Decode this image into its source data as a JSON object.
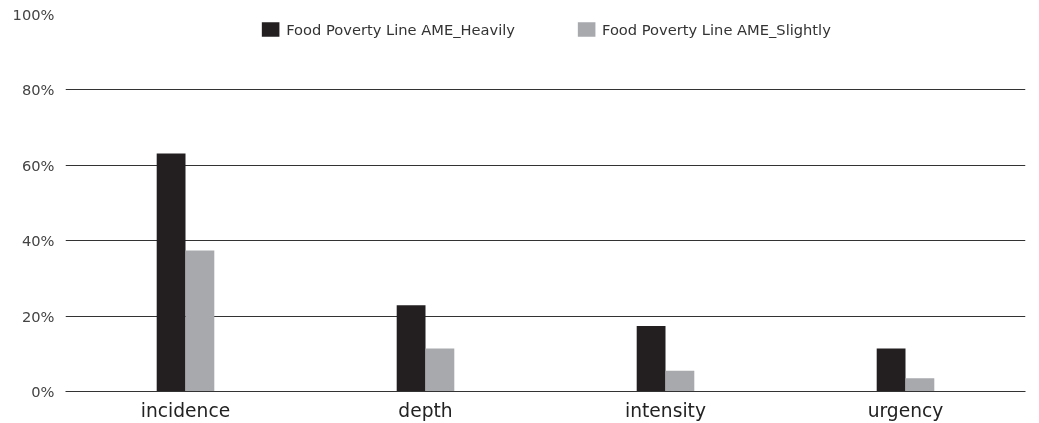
{
  "chart_data": {
    "type": "bar",
    "categories": [
      "incidence",
      "depth",
      "intensity",
      "urgency"
    ],
    "series": [
      {
        "name": "Food Poverty Line AME_Heavily",
        "color": "#231f20",
        "values": [
          63.1,
          22.9,
          17.4,
          11.4
        ]
      },
      {
        "name": "Food Poverty Line AME_Slightly",
        "color": "#a7a9ac",
        "values": [
          37.4,
          11.4,
          5.5,
          3.5
        ]
      }
    ],
    "ylim": [
      0,
      100
    ],
    "yticks": [
      {
        "value": 0,
        "label": "0%"
      },
      {
        "value": 20,
        "label": "20%"
      },
      {
        "value": 40,
        "label": "40%"
      },
      {
        "value": 60,
        "label": "60%"
      },
      {
        "value": 80,
        "label": "80%"
      },
      {
        "value": 100,
        "label": "100%"
      }
    ],
    "grid": "y",
    "legend": "top"
  }
}
